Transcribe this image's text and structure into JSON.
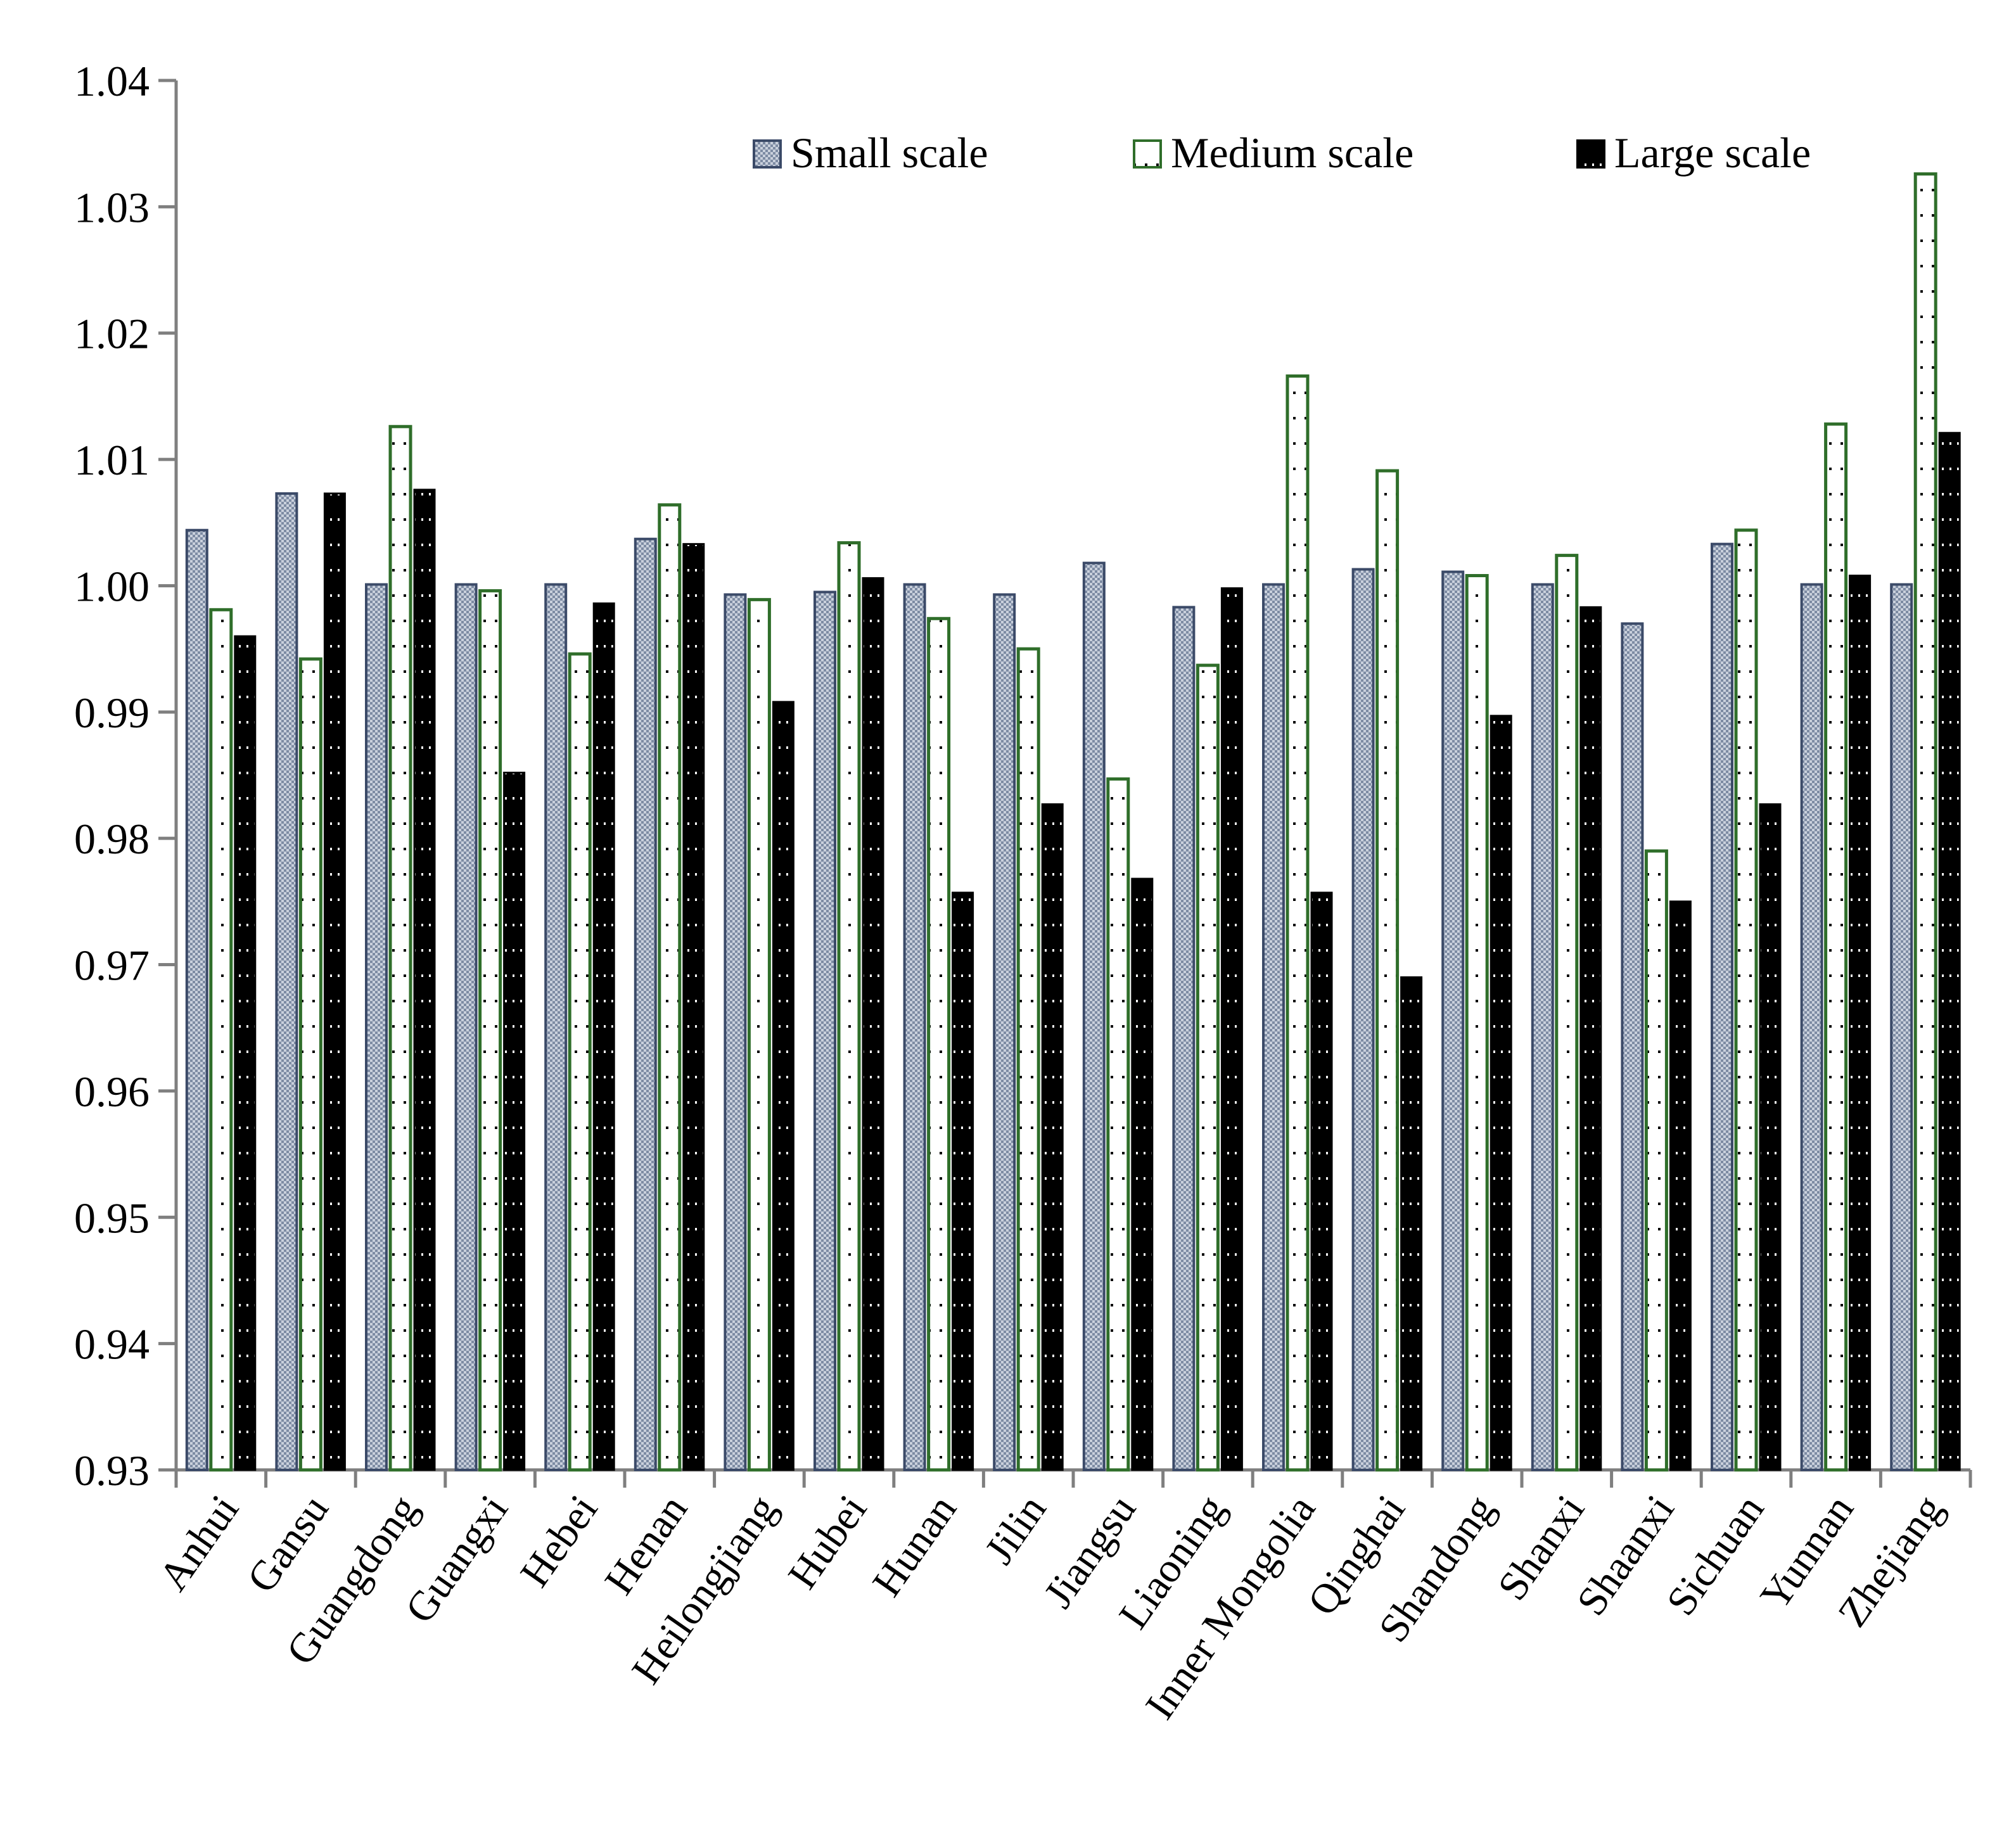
{
  "chart_data": {
    "type": "bar",
    "title": "",
    "xlabel": "",
    "ylabel": "",
    "ylim": [
      0.93,
      1.04
    ],
    "yticks": [
      0.93,
      0.94,
      0.95,
      0.96,
      0.97,
      0.98,
      0.99,
      1.0,
      1.01,
      1.02,
      1.03,
      1.04
    ],
    "ytick_labels": [
      "0.93",
      "0.94",
      "0.95",
      "0.96",
      "0.97",
      "0.98",
      "0.99",
      "1.00",
      "1.01",
      "1.02",
      "1.03",
      "1.04"
    ],
    "grid": false,
    "legend_position": "top-right",
    "categories": [
      "Anhui",
      "Gansu",
      "Guangdong",
      "Guangxi",
      "Hebei",
      "Henan",
      "Heilongjiang",
      "Hubei",
      "Hunan",
      "Jilin",
      "Jiangsu",
      "Liaoning",
      "Inner Mongolia",
      "Qinghai",
      "Shandong",
      "Shanxi",
      "Shaanxi",
      "Sichuan",
      "Yunnan",
      "Zhejiang"
    ],
    "series": [
      {
        "name": "Small scale",
        "style": "small",
        "values": [
          1.0044,
          1.0073,
          1.0001,
          1.0001,
          1.0001,
          1.0037,
          0.9993,
          0.9995,
          1.0001,
          0.9993,
          1.0018,
          0.9983,
          1.0001,
          1.0013,
          1.0011,
          1.0001,
          0.997,
          1.0033,
          1.0001,
          1.0001
        ]
      },
      {
        "name": "Medium scale",
        "style": "medium",
        "values": [
          0.9981,
          0.9942,
          1.0126,
          0.9996,
          0.9946,
          1.0064,
          0.9989,
          1.0034,
          0.9974,
          0.995,
          0.9847,
          0.9937,
          1.0166,
          1.0091,
          1.0008,
          1.0024,
          0.979,
          1.0044,
          1.0128,
          1.0326
        ]
      },
      {
        "name": "Large scale",
        "style": "large",
        "values": [
          0.996,
          1.0073,
          1.0076,
          0.9852,
          0.9986,
          1.0033,
          0.9908,
          1.0006,
          0.9757,
          0.9827,
          0.9768,
          0.9998,
          0.9757,
          0.969,
          0.9897,
          0.9983,
          0.975,
          0.9827,
          1.0008,
          1.0121
        ]
      }
    ]
  },
  "colors": {
    "small_fill": "#5e6e8a",
    "small_stroke": "#3b4a68",
    "medium_stroke": "#2f6e2a",
    "large_fill": "#000000",
    "axis": "#7f7f7f"
  }
}
